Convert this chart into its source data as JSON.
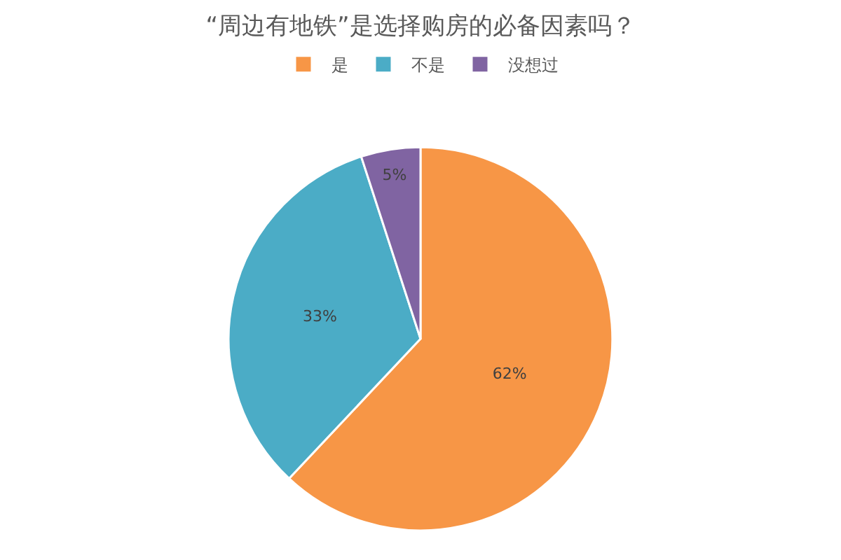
{
  "chart_data": {
    "type": "pie",
    "title": "“周边有地铁”是选择购房的必备因素吗？",
    "categories": [
      "是",
      "不是",
      "没想过"
    ],
    "values": [
      62,
      33,
      5
    ],
    "colors": [
      "#f79646",
      "#4bacc6",
      "#8064a2"
    ],
    "value_labels": [
      "62%",
      "33%",
      "5%"
    ],
    "legend": "top"
  }
}
